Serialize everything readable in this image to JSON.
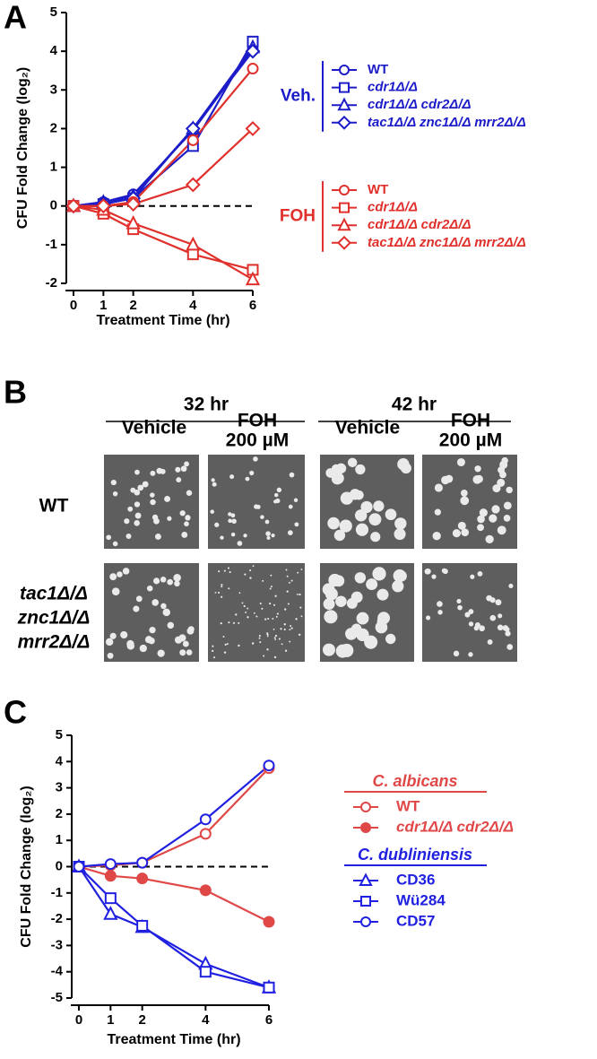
{
  "panel_labels": [
    "A",
    "B",
    "C"
  ],
  "chart_data": [
    {
      "type": "line",
      "x_label": "Treatment Time (hr)",
      "y_label": "CFU Fold Change (log₂)",
      "x": [
        0,
        1,
        2,
        4,
        6
      ],
      "xlim": [
        0,
        6
      ],
      "xticks": [
        0,
        1,
        2,
        4,
        6
      ],
      "ylim": [
        -2,
        5
      ],
      "yticks": [
        -2,
        -1,
        0,
        1,
        2,
        3,
        4,
        5
      ],
      "hline": 0,
      "legend_groups": [
        {
          "label": "Veh.",
          "color": "#1c1cc8"
        },
        {
          "label": "FOH",
          "color": "#e0302c"
        }
      ],
      "series": [
        {
          "name": "WT",
          "color": "#1c1cc8",
          "marker": "circle",
          "italic": false,
          "values": [
            0,
            0.1,
            0.3,
            1.95,
            4.05
          ]
        },
        {
          "name": "cdr1Δ/Δ",
          "color": "#1c1cc8",
          "marker": "square",
          "italic": true,
          "values": [
            0,
            0.05,
            0.2,
            1.55,
            4.25
          ]
        },
        {
          "name": "cdr1Δ/Δ cdr2Δ/Δ",
          "color": "#1c1cc8",
          "marker": "triangle",
          "italic": true,
          "values": [
            0,
            0.1,
            0.25,
            2.0,
            4.1
          ]
        },
        {
          "name": "tac1Δ/Δ znc1Δ/Δ mrr2Δ/Δ",
          "color": "#1c1cc8",
          "marker": "diamond",
          "italic": true,
          "values": [
            0,
            0.05,
            0.2,
            2.0,
            4.0
          ]
        },
        {
          "name": "WT",
          "color": "#e0302c",
          "marker": "circle",
          "italic": false,
          "values": [
            0,
            0,
            0.1,
            1.7,
            3.55
          ]
        },
        {
          "name": "cdr1Δ/Δ",
          "color": "#e0302c",
          "marker": "square",
          "italic": true,
          "values": [
            0,
            -0.2,
            -0.6,
            -1.25,
            -1.65
          ]
        },
        {
          "name": "cdr1Δ/Δ cdr2Δ/Δ",
          "color": "#e0302c",
          "marker": "triangle",
          "italic": true,
          "values": [
            0,
            -0.1,
            -0.45,
            -1.0,
            -1.9
          ]
        },
        {
          "name": "tac1Δ/Δ znc1Δ/Δ mrr2Δ/Δ",
          "color": "#e0302c",
          "marker": "diamond",
          "italic": true,
          "values": [
            0,
            0,
            0.05,
            0.55,
            2.0
          ]
        }
      ]
    },
    {
      "type": "line",
      "x_label": "Treatment Time (hr)",
      "y_label": "CFU Fold Change (log₂)",
      "x": [
        0,
        1,
        2,
        4,
        6
      ],
      "xlim": [
        0,
        6
      ],
      "xticks": [
        0,
        1,
        2,
        4,
        6
      ],
      "ylim": [
        -5,
        5
      ],
      "yticks": [
        -5,
        -4,
        -3,
        -2,
        -1,
        0,
        1,
        2,
        3,
        4,
        5
      ],
      "hline": 0,
      "legend_groups": [
        {
          "label": "C. albicans",
          "color": "#e04848"
        },
        {
          "label": "C. dubliniensis",
          "color": "#2020e0"
        }
      ],
      "series": [
        {
          "name": "WT",
          "color": "#e04848",
          "marker": "circle",
          "filled": false,
          "italic": false,
          "values": [
            0,
            0.05,
            0.15,
            1.25,
            3.75
          ]
        },
        {
          "name": "cdr1Δ/Δ cdr2Δ/Δ",
          "color": "#e04848",
          "marker": "circle",
          "filled": true,
          "italic": true,
          "values": [
            0,
            -0.35,
            -0.45,
            -0.9,
            -2.1
          ]
        },
        {
          "name": "CD36",
          "color": "#2020e0",
          "marker": "triangle",
          "filled": false,
          "italic": false,
          "values": [
            0,
            -1.8,
            -2.3,
            -3.7,
            -4.6
          ]
        },
        {
          "name": "Wü284",
          "color": "#2020e0",
          "marker": "square",
          "filled": false,
          "italic": false,
          "values": [
            0,
            -1.2,
            -2.25,
            -4.0,
            -4.6
          ]
        },
        {
          "name": "CD57",
          "color": "#2020e0",
          "marker": "circle",
          "filled": false,
          "italic": false,
          "values": [
            0,
            0.1,
            0.15,
            1.8,
            3.85
          ]
        }
      ]
    }
  ],
  "panel_b": {
    "column_groups": [
      {
        "label": "32 hr",
        "columns": [
          [
            "Vehicle"
          ],
          [
            "FOH",
            "200 µM"
          ]
        ]
      },
      {
        "label": "42 hr",
        "columns": [
          [
            "Vehicle"
          ],
          [
            "FOH",
            "200 µM"
          ]
        ]
      }
    ],
    "rows": [
      [
        "WT"
      ],
      [
        "tac1Δ/Δ",
        "znc1Δ/Δ",
        "mrr2Δ/Δ"
      ]
    ]
  }
}
